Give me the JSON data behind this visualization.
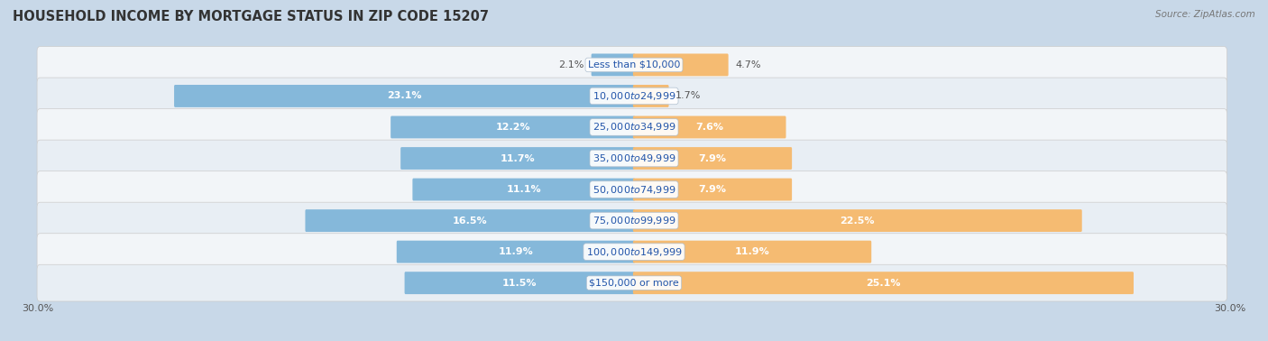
{
  "title": "HOUSEHOLD INCOME BY MORTGAGE STATUS IN ZIP CODE 15207",
  "source": "Source: ZipAtlas.com",
  "categories": [
    "Less than $10,000",
    "$10,000 to $24,999",
    "$25,000 to $34,999",
    "$35,000 to $49,999",
    "$50,000 to $74,999",
    "$75,000 to $99,999",
    "$100,000 to $149,999",
    "$150,000 or more"
  ],
  "without_mortgage": [
    2.1,
    23.1,
    12.2,
    11.7,
    11.1,
    16.5,
    11.9,
    11.5
  ],
  "with_mortgage": [
    4.7,
    1.7,
    7.6,
    7.9,
    7.9,
    22.5,
    11.9,
    25.1
  ],
  "color_without": "#85B8DA",
  "color_with": "#F5BB72",
  "color_without_large": "#6AACCF",
  "color_with_large": "#F0A84A",
  "xlim": 30.0,
  "fig_bg": "#C8D8E8",
  "row_colors": [
    "#F2F5F8",
    "#E8EEF4"
  ],
  "bar_height": 0.62,
  "label_fontsize": 8.0,
  "cat_fontsize": 8.0,
  "title_fontsize": 10.5,
  "axis_label_fontsize": 8.0,
  "legend_fontsize": 8.5,
  "inside_threshold": 5.0
}
